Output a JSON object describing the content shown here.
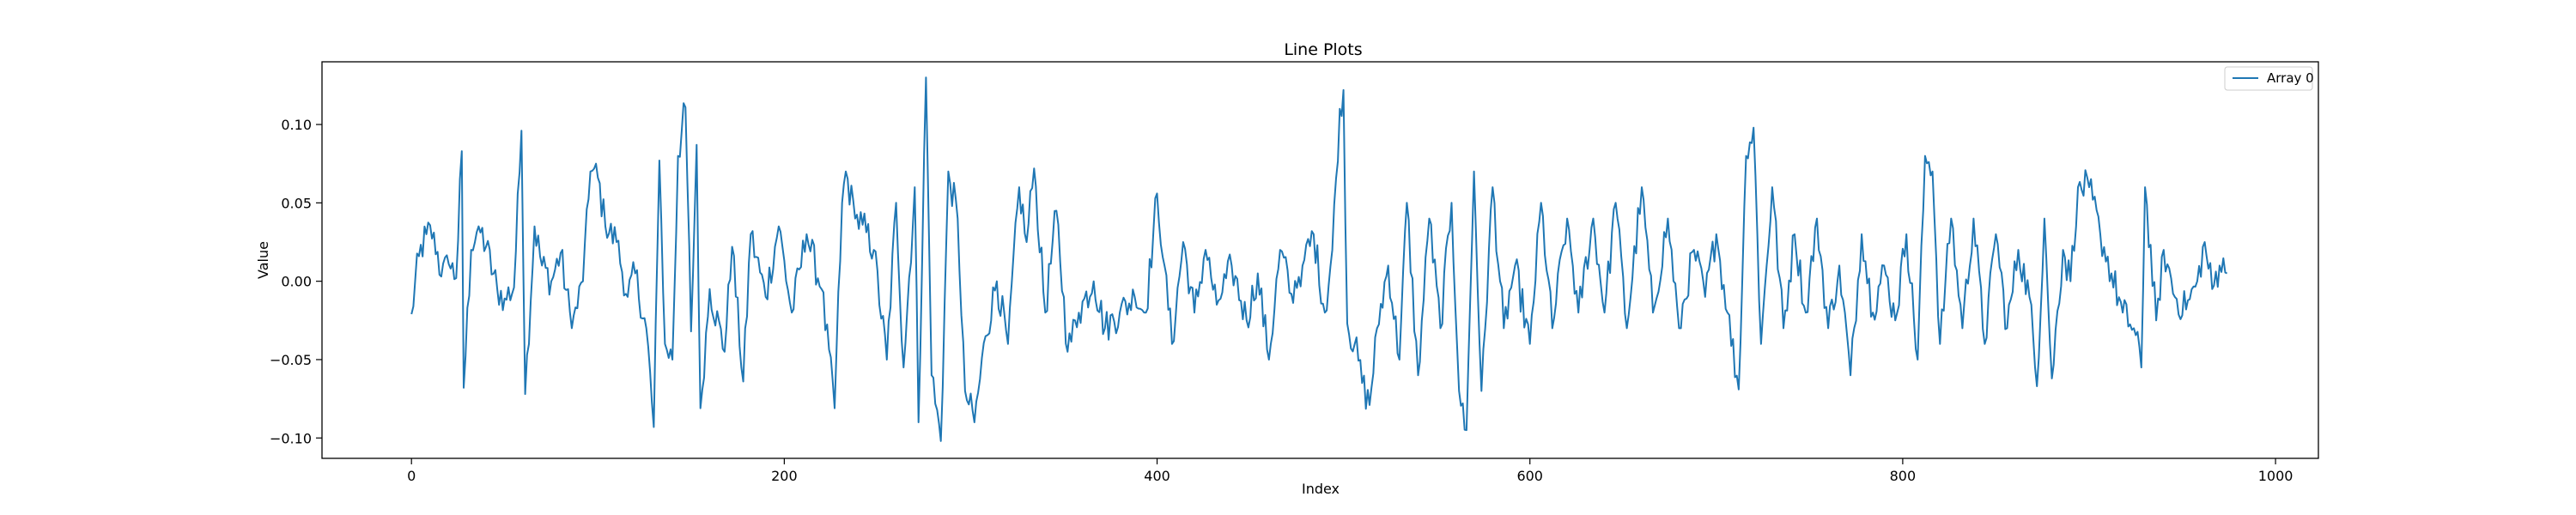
{
  "chart_data": {
    "type": "line",
    "title": "Line Plots",
    "xlabel": "Index",
    "ylabel": "Value",
    "xlim": [
      -48,
      1023
    ],
    "ylim": [
      -0.113,
      0.14
    ],
    "xticks": [
      0,
      200,
      400,
      600,
      800,
      1000
    ],
    "xtick_labels": [
      "0",
      "200",
      "400",
      "600",
      "800",
      "1000"
    ],
    "yticks": [
      -0.1,
      -0.05,
      0.0,
      0.05,
      0.1
    ],
    "ytick_labels": [
      "−0.10",
      "−0.05",
      "0.00",
      "0.05",
      "0.10"
    ],
    "grid": false,
    "legend_position": "top-right",
    "series": [
      {
        "name": "Array 0",
        "color": "#1f77b4",
        "n_points": 975,
        "x_start": 0,
        "x_step": 1,
        "keypoints": [
          [
            0,
            -0.021
          ],
          [
            4,
            0.016
          ],
          [
            8,
            0.03
          ],
          [
            12,
            0.031
          ],
          [
            16,
            0.003
          ],
          [
            20,
            0.011
          ],
          [
            24,
            0.002
          ],
          [
            27,
            0.083
          ],
          [
            28,
            -0.068
          ],
          [
            32,
            0.02
          ],
          [
            36,
            0.035
          ],
          [
            40,
            0.022
          ],
          [
            46,
            -0.005
          ],
          [
            50,
            -0.011
          ],
          [
            55,
            -0.004
          ],
          [
            59,
            0.096
          ],
          [
            61,
            -0.072
          ],
          [
            66,
            0.035
          ],
          [
            70,
            0.01
          ],
          [
            75,
            0.0
          ],
          [
            80,
            0.018
          ],
          [
            86,
            -0.03
          ],
          [
            92,
            0.0
          ],
          [
            96,
            0.07
          ],
          [
            100,
            0.066
          ],
          [
            104,
            0.035
          ],
          [
            110,
            0.025
          ],
          [
            116,
            -0.01
          ],
          [
            120,
            0.005
          ],
          [
            126,
            -0.03
          ],
          [
            130,
            -0.093
          ],
          [
            133,
            0.077
          ],
          [
            136,
            -0.04
          ],
          [
            140,
            -0.05
          ],
          [
            143,
            0.08
          ],
          [
            147,
            0.111
          ],
          [
            150,
            -0.032
          ],
          [
            153,
            0.087
          ],
          [
            155,
            -0.081
          ],
          [
            160,
            -0.005
          ],
          [
            168,
            -0.045
          ],
          [
            172,
            0.022
          ],
          [
            178,
            -0.064
          ],
          [
            182,
            0.03
          ],
          [
            190,
            -0.01
          ],
          [
            197,
            0.035
          ],
          [
            204,
            -0.02
          ],
          [
            212,
            0.03
          ],
          [
            220,
            -0.005
          ],
          [
            227,
            -0.081
          ],
          [
            231,
            0.05
          ],
          [
            233,
            0.07
          ],
          [
            238,
            0.04
          ],
          [
            242,
            0.036
          ],
          [
            248,
            0.02
          ],
          [
            255,
            -0.05
          ],
          [
            260,
            0.05
          ],
          [
            264,
            -0.055
          ],
          [
            270,
            0.06
          ],
          [
            272,
            -0.09
          ],
          [
            276,
            0.13
          ],
          [
            279,
            -0.06
          ],
          [
            284,
            -0.102
          ],
          [
            288,
            0.07
          ],
          [
            293,
            0.04
          ],
          [
            297,
            -0.07
          ],
          [
            302,
            -0.09
          ],
          [
            308,
            -0.035
          ],
          [
            314,
            0.0
          ],
          [
            320,
            -0.04
          ],
          [
            326,
            0.06
          ],
          [
            330,
            0.025
          ],
          [
            334,
            0.072
          ],
          [
            340,
            -0.02
          ],
          [
            346,
            0.045
          ],
          [
            352,
            -0.045
          ],
          [
            358,
            -0.02
          ],
          [
            366,
            0.0
          ],
          [
            372,
            -0.03
          ],
          [
            380,
            -0.02
          ],
          [
            388,
            -0.01
          ],
          [
            394,
            -0.02
          ],
          [
            400,
            0.056
          ],
          [
            404,
            0.01
          ],
          [
            408,
            -0.04
          ],
          [
            414,
            0.025
          ],
          [
            420,
            -0.02
          ],
          [
            426,
            0.02
          ],
          [
            432,
            -0.015
          ],
          [
            440,
            0.01
          ],
          [
            448,
            -0.025
          ],
          [
            454,
            0.005
          ],
          [
            460,
            -0.05
          ],
          [
            466,
            0.02
          ],
          [
            472,
            -0.008
          ],
          [
            478,
            0.01
          ],
          [
            484,
            0.03
          ],
          [
            490,
            -0.02
          ],
          [
            494,
            0.02
          ],
          [
            498,
            0.11
          ],
          [
            500,
            0.122
          ],
          [
            502,
            -0.027
          ],
          [
            506,
            -0.04
          ],
          [
            510,
            -0.065
          ],
          [
            514,
            -0.079
          ],
          [
            518,
            -0.03
          ],
          [
            524,
            0.01
          ],
          [
            530,
            -0.05
          ],
          [
            534,
            0.05
          ],
          [
            540,
            -0.06
          ],
          [
            546,
            0.04
          ],
          [
            552,
            -0.03
          ],
          [
            558,
            0.05
          ],
          [
            562,
            -0.07
          ],
          [
            566,
            -0.095
          ],
          [
            570,
            0.07
          ],
          [
            574,
            -0.07
          ],
          [
            580,
            0.06
          ],
          [
            586,
            -0.03
          ],
          [
            592,
            0.01
          ],
          [
            600,
            -0.04
          ],
          [
            606,
            0.05
          ],
          [
            612,
            -0.03
          ],
          [
            620,
            0.04
          ],
          [
            626,
            -0.02
          ],
          [
            634,
            0.04
          ],
          [
            640,
            -0.02
          ],
          [
            646,
            0.05
          ],
          [
            652,
            -0.03
          ],
          [
            660,
            0.06
          ],
          [
            666,
            -0.02
          ],
          [
            674,
            0.04
          ],
          [
            680,
            -0.03
          ],
          [
            688,
            0.02
          ],
          [
            694,
            -0.01
          ],
          [
            700,
            0.03
          ],
          [
            706,
            -0.02
          ],
          [
            712,
            -0.069
          ],
          [
            716,
            0.08
          ],
          [
            720,
            0.098
          ],
          [
            724,
            -0.04
          ],
          [
            730,
            0.06
          ],
          [
            736,
            -0.03
          ],
          [
            742,
            0.03
          ],
          [
            748,
            -0.02
          ],
          [
            754,
            0.04
          ],
          [
            760,
            -0.03
          ],
          [
            766,
            0.01
          ],
          [
            772,
            -0.06
          ],
          [
            778,
            0.03
          ],
          [
            784,
            -0.02
          ],
          [
            790,
            0.01
          ],
          [
            796,
            -0.025
          ],
          [
            802,
            0.03
          ],
          [
            808,
            -0.05
          ],
          [
            812,
            0.08
          ],
          [
            816,
            0.07
          ],
          [
            820,
            -0.04
          ],
          [
            826,
            0.04
          ],
          [
            832,
            -0.03
          ],
          [
            838,
            0.04
          ],
          [
            844,
            -0.04
          ],
          [
            850,
            0.03
          ],
          [
            856,
            -0.03
          ],
          [
            862,
            0.02
          ],
          [
            868,
            -0.01
          ],
          [
            872,
            -0.067
          ],
          [
            876,
            0.04
          ],
          [
            880,
            -0.062
          ],
          [
            886,
            0.02
          ],
          [
            890,
            0.0
          ],
          [
            894,
            0.06
          ],
          [
            900,
            0.06
          ],
          [
            906,
            0.03
          ],
          [
            912,
            0.005
          ],
          [
            918,
            -0.02
          ],
          [
            924,
            -0.03
          ],
          [
            928,
            -0.055
          ],
          [
            930,
            0.06
          ],
          [
            936,
            -0.025
          ],
          [
            940,
            0.02
          ],
          [
            946,
            -0.01
          ],
          [
            952,
            -0.018
          ],
          [
            958,
            0.0
          ],
          [
            962,
            0.025
          ],
          [
            966,
            -0.005
          ],
          [
            970,
            0.01
          ],
          [
            974,
            0.005
          ]
        ]
      }
    ]
  }
}
